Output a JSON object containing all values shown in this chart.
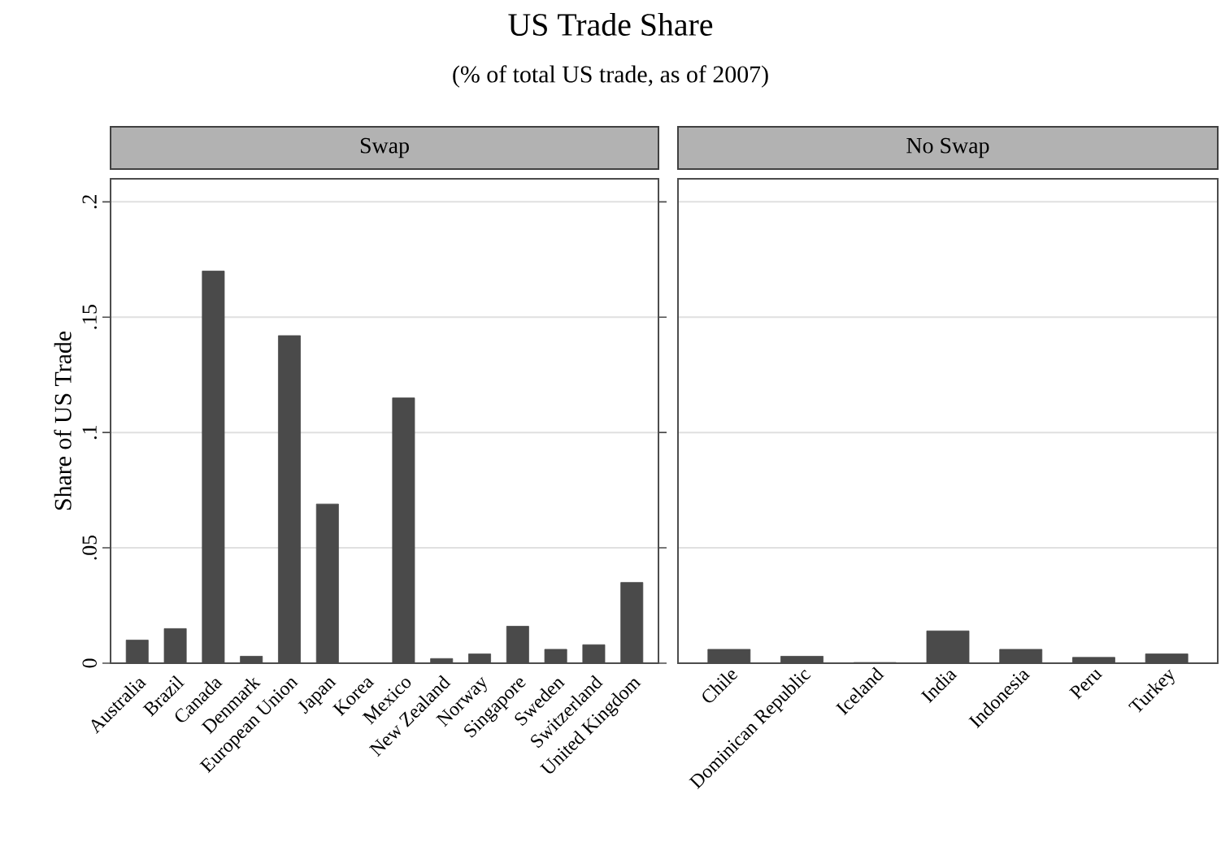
{
  "chart_data": [
    {
      "type": "bar",
      "title": "Swap",
      "ylabel": "Share of US Trade",
      "annotations": [
        "US Trade Share",
        "(% of total US trade, as of 2007)"
      ],
      "categories": [
        "Australia",
        "Brazil",
        "Canada",
        "Denmark",
        "European Union",
        "Japan",
        "Korea",
        "Mexico",
        "New Zealand",
        "Norway",
        "Singapore",
        "Sweden",
        "Switzerland",
        "United Kingdom"
      ],
      "values": [
        0.01,
        0.015,
        0.17,
        0.003,
        0.142,
        0.069,
        null,
        0.115,
        0.002,
        0.004,
        0.016,
        0.006,
        0.008,
        0.035
      ],
      "color": "#4a4a4a",
      "ylim": [
        0,
        0.21
      ],
      "yticks": [
        0,
        {
          "value": 0.05,
          "label": ".05"
        },
        {
          "value": 0.1,
          "label": ".1"
        },
        {
          "value": 0.15,
          "label": ".15"
        },
        {
          "value": 0.2,
          "label": ".2"
        }
      ],
      "grid": "y"
    },
    {
      "type": "bar",
      "title": "No Swap",
      "categories": [
        "Chile",
        "Dominican Republic",
        "Iceland",
        "India",
        "Indonesia",
        "Peru",
        "Turkey"
      ],
      "values": [
        0.006,
        0.003,
        0.0003,
        0.014,
        0.006,
        0.0025,
        0.004
      ],
      "color": "#4a4a4a",
      "ylim": [
        0,
        0.21
      ],
      "yticks": [
        {
          "value": 0,
          "label": null
        },
        {
          "value": 0.05,
          "label": null
        },
        {
          "value": 0.1,
          "label": null
        },
        {
          "value": 0.15,
          "label": null
        },
        {
          "value": 0.2,
          "label": null
        }
      ],
      "grid": "y",
      "tick_labels": "x"
    }
  ]
}
